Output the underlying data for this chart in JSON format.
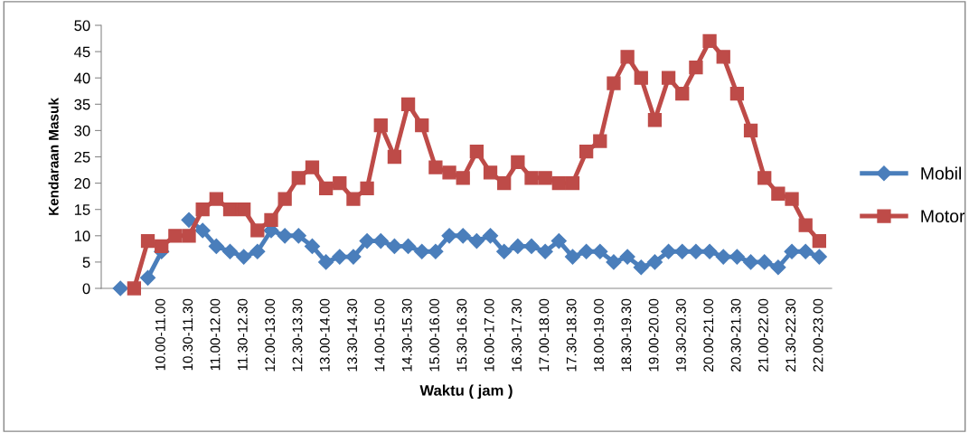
{
  "chart_data": {
    "type": "line",
    "xlabel": "Waktu ( jam )",
    "ylabel": "Kendaraan Masuk",
    "categories": [
      null,
      null,
      null,
      "10.00-11.00",
      null,
      "10.30-11.30",
      null,
      "11.00-12.00",
      null,
      "11.30-12.30",
      null,
      "12.00-13.00",
      null,
      "12.30-13.30",
      null,
      "13.00-14.00",
      null,
      "13.30-14.30",
      null,
      "14.00-15.00",
      null,
      "14.30-15.30",
      null,
      "15.00-16.00",
      null,
      "15.30-16.30",
      null,
      "16.00-17.00",
      null,
      "16.30-17.30",
      null,
      "17.00-18.00",
      null,
      "17.30-18.30",
      null,
      "18.00-19.00",
      null,
      "18.30-19.30",
      null,
      "19.00-20.00",
      null,
      "19.30-20.30",
      null,
      "20.00-21.00",
      null,
      "20.30-21.30",
      null,
      "21.00-22.00",
      null,
      "21.30-22.30",
      null,
      "22.00-23.00"
    ],
    "series": [
      {
        "name": "Mobil",
        "color": "#4a7ebb",
        "marker": "diamond",
        "values": [
          0,
          null,
          2,
          7,
          null,
          13,
          11,
          8,
          7,
          6,
          7,
          11,
          10,
          10,
          8,
          5,
          6,
          6,
          9,
          9,
          8,
          8,
          7,
          7,
          10,
          10,
          9,
          10,
          7,
          8,
          8,
          7,
          9,
          6,
          7,
          7,
          5,
          6,
          4,
          5,
          7,
          7,
          7,
          7,
          6,
          6,
          5,
          5,
          4,
          7,
          7,
          6
        ]
      },
      {
        "name": "Motor",
        "color": "#be4b48",
        "marker": "square",
        "values": [
          null,
          0,
          9,
          8,
          10,
          10,
          15,
          17,
          15,
          15,
          11,
          13,
          17,
          21,
          23,
          19,
          20,
          17,
          19,
          31,
          25,
          35,
          31,
          23,
          22,
          21,
          26,
          22,
          20,
          24,
          21,
          21,
          20,
          20,
          26,
          28,
          39,
          44,
          40,
          32,
          40,
          37,
          42,
          47,
          44,
          37,
          30,
          21,
          18,
          17,
          12,
          9
        ]
      }
    ],
    "ylim": [
      0,
      50
    ],
    "yticks": [
      0,
      5,
      10,
      15,
      20,
      25,
      30,
      35,
      40,
      45,
      50
    ],
    "grid": false,
    "legend": "right",
    "line_style": "solid"
  }
}
